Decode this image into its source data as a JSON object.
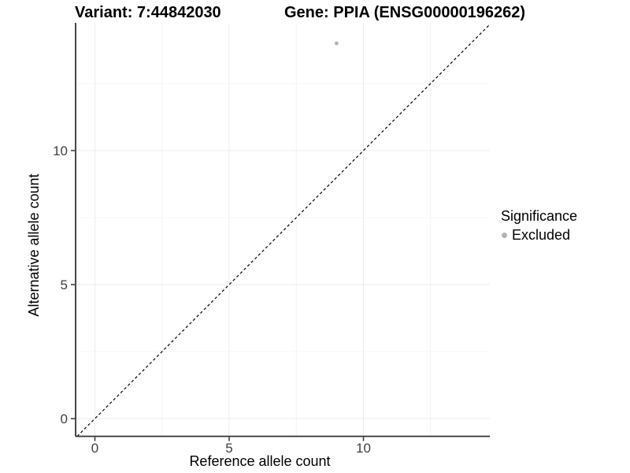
{
  "titles": {
    "variant": "Variant: 7:44842030",
    "gene": "Gene: PPIA (ENSG00000196262)"
  },
  "axes": {
    "x": {
      "label": "Reference allele count"
    },
    "y": {
      "label": "Alternative allele count"
    }
  },
  "legend": {
    "title": "Significance",
    "items": [
      {
        "label": "Excluded",
        "color": "#b3b3b3"
      }
    ]
  },
  "colors": {
    "background": "#ffffff",
    "point": "#b3b3b3",
    "grid_major": "#ececec",
    "grid_minor": "#f4f4f4",
    "axis_line": "#333333",
    "tick_label": "#404040",
    "dashed_line": "#000000"
  },
  "chart_data": {
    "type": "scatter",
    "title_left": "Variant: 7:44842030",
    "title_right": "Gene: PPIA (ENSG00000196262)",
    "xlabel": "Reference allele count",
    "ylabel": "Alternative allele count",
    "x_ticks": [
      0,
      5,
      10
    ],
    "y_ticks": [
      0,
      5,
      10
    ],
    "x_minor_ticks": [
      2.5,
      7.5,
      12.5
    ],
    "y_minor_ticks": [
      2.5,
      7.5,
      12.5
    ],
    "xlim": [
      -0.72,
      14.71
    ],
    "ylim": [
      -0.66,
      14.76
    ],
    "grid": "major+minor",
    "series": [
      {
        "name": "Excluded",
        "color": "#b3b3b3",
        "points": [
          {
            "x": 9,
            "y": 14
          }
        ]
      }
    ],
    "reference_line": {
      "kind": "identity y=x",
      "linetype": "dashed",
      "color": "#000000"
    },
    "legend_position": "right"
  }
}
